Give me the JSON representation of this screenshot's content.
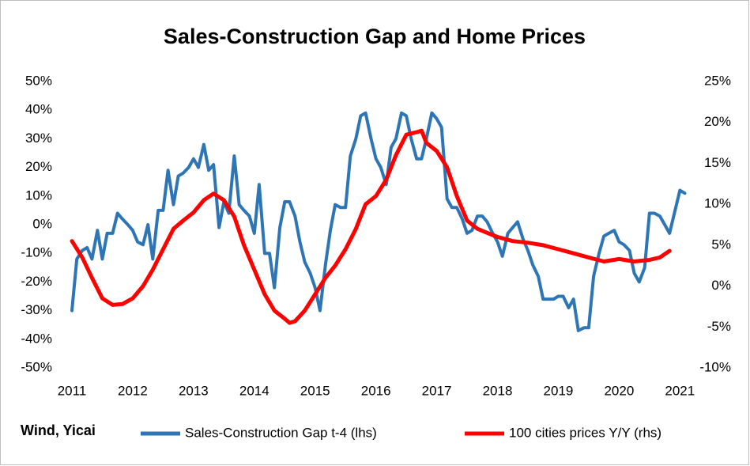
{
  "chart_data": {
    "type": "line",
    "title": "Sales-Construction Gap and Home Prices",
    "source": "Wind, Yicai",
    "xlim": [
      2011,
      2021.1
    ],
    "xticks": [
      2011,
      2012,
      2013,
      2014,
      2015,
      2016,
      2017,
      2018,
      2019,
      2020,
      2021
    ],
    "ylim": [
      -50,
      50
    ],
    "yticks": [
      {
        "value": -50,
        "label": "-50%"
      },
      {
        "value": -40,
        "label": "-40%"
      },
      {
        "value": -30,
        "label": "-30%"
      },
      {
        "value": -20,
        "label": "-20%"
      },
      {
        "value": -10,
        "label": "-10%"
      },
      {
        "value": 0,
        "label": "0%"
      },
      {
        "value": 10,
        "label": "10%"
      },
      {
        "value": 20,
        "label": "20%"
      },
      {
        "value": 30,
        "label": "30%"
      },
      {
        "value": 40,
        "label": "40%"
      },
      {
        "value": 50,
        "label": "50%"
      }
    ],
    "y2lim": [
      -10,
      25
    ],
    "y2ticks": [
      {
        "value": -10,
        "label": "-10%"
      },
      {
        "value": -5,
        "label": "-5%"
      },
      {
        "value": 0,
        "label": "0%"
      },
      {
        "value": 5,
        "label": "5%"
      },
      {
        "value": 10,
        "label": "10%"
      },
      {
        "value": 15,
        "label": "15%"
      },
      {
        "value": 20,
        "label": "20%"
      },
      {
        "value": 25,
        "label": "25%"
      }
    ],
    "grid": false,
    "legend": "bottom",
    "series": [
      {
        "name": "Sales-Construction Gap t-4 (lhs)",
        "color": "#2e75b6",
        "axis": "y",
        "x": [
          2011.0,
          2011.08,
          2011.17,
          2011.25,
          2011.33,
          2011.42,
          2011.5,
          2011.58,
          2011.67,
          2011.75,
          2011.83,
          2011.92,
          2012.0,
          2012.08,
          2012.17,
          2012.25,
          2012.33,
          2012.42,
          2012.5,
          2012.58,
          2012.67,
          2012.75,
          2012.83,
          2012.92,
          2013.0,
          2013.08,
          2013.17,
          2013.25,
          2013.33,
          2013.42,
          2013.5,
          2013.58,
          2013.67,
          2013.75,
          2013.83,
          2013.92,
          2014.0,
          2014.08,
          2014.17,
          2014.25,
          2014.33,
          2014.42,
          2014.5,
          2014.58,
          2014.67,
          2014.75,
          2014.83,
          2014.92,
          2015.0,
          2015.08,
          2015.17,
          2015.25,
          2015.33,
          2015.42,
          2015.5,
          2015.58,
          2015.67,
          2015.75,
          2015.83,
          2015.92,
          2016.0,
          2016.08,
          2016.17,
          2016.25,
          2016.33,
          2016.42,
          2016.5,
          2016.58,
          2016.67,
          2016.75,
          2016.83,
          2016.92,
          2017.0,
          2017.08,
          2017.17,
          2017.25,
          2017.33,
          2017.42,
          2017.5,
          2017.58,
          2017.67,
          2017.75,
          2017.83,
          2017.92,
          2018.0,
          2018.08,
          2018.17,
          2018.25,
          2018.33,
          2018.42,
          2018.5,
          2018.58,
          2018.67,
          2018.75,
          2018.83,
          2018.92,
          2019.0,
          2019.08,
          2019.17,
          2019.25,
          2019.33,
          2019.42,
          2019.5,
          2019.58,
          2019.67,
          2019.75,
          2019.83,
          2019.92,
          2020.0,
          2020.08,
          2020.17,
          2020.25,
          2020.33,
          2020.42,
          2020.5,
          2020.58,
          2020.67,
          2020.75,
          2020.83,
          2020.92,
          2021.0,
          2021.08
        ],
        "values": [
          -30,
          -12,
          -9,
          -8,
          -12,
          -2,
          -12,
          -3,
          -3,
          4,
          2,
          0,
          -2,
          -6,
          -7,
          0,
          -12,
          5,
          5,
          19,
          7,
          17,
          18,
          20,
          23,
          20,
          28,
          19,
          21,
          -1,
          8,
          4,
          24,
          7,
          5,
          3,
          -3,
          14,
          -10,
          -10,
          -22,
          -1,
          8,
          8,
          3,
          -6,
          -13,
          -17,
          -22,
          -30,
          -14,
          -2,
          7,
          6,
          6,
          24,
          30,
          38,
          39,
          30,
          23,
          20,
          14,
          27,
          30,
          39,
          38,
          30,
          23,
          23,
          30,
          39,
          37,
          34,
          9,
          6,
          6,
          2,
          -3,
          -2,
          3,
          3,
          1,
          -3,
          -6,
          -11,
          -3,
          -1,
          1,
          -5,
          -9,
          -14,
          -18,
          -26,
          -26,
          -26,
          -25,
          -25,
          -29,
          -26,
          -37,
          -36,
          -36,
          -18,
          -10,
          -4,
          -3,
          -2,
          -6,
          -7,
          -9,
          -17,
          -20,
          -15,
          4,
          4,
          3,
          0,
          -3,
          5,
          12,
          11
        ]
      },
      {
        "name": "100 cities prices Y/Y (rhs)",
        "color": "#ff0000",
        "axis": "y2",
        "x": [
          2011.0,
          2011.17,
          2011.33,
          2011.5,
          2011.67,
          2011.83,
          2012.0,
          2012.17,
          2012.33,
          2012.5,
          2012.67,
          2012.83,
          2013.0,
          2013.17,
          2013.33,
          2013.5,
          2013.67,
          2013.83,
          2014.0,
          2014.17,
          2014.33,
          2014.5,
          2014.58,
          2014.67,
          2014.83,
          2015.0,
          2015.17,
          2015.33,
          2015.5,
          2015.67,
          2015.83,
          2016.0,
          2016.17,
          2016.33,
          2016.5,
          2016.67,
          2016.75,
          2016.83,
          2017.0,
          2017.17,
          2017.33,
          2017.5,
          2017.67,
          2017.83,
          2018.0,
          2018.25,
          2018.5,
          2018.75,
          2019.0,
          2019.25,
          2019.5,
          2019.75,
          2020.0,
          2020.25,
          2020.5,
          2020.67,
          2020.83
        ],
        "values": [
          5.5,
          3.5,
          1,
          -1.5,
          -2.3,
          -2.2,
          -1.5,
          0,
          2,
          4.5,
          7,
          8,
          9,
          10.5,
          11.3,
          10.5,
          8.5,
          5,
          2,
          -1,
          -3,
          -4,
          -4.5,
          -4.3,
          -3,
          -1,
          1,
          2.5,
          4.5,
          7,
          10,
          11,
          13,
          16,
          18.5,
          18.8,
          19,
          17.5,
          16.5,
          14.5,
          11,
          8,
          7,
          6.5,
          6,
          5.5,
          5.3,
          5,
          4.5,
          4,
          3.5,
          3,
          3.3,
          3,
          3.2,
          3.5,
          4.3
        ]
      }
    ]
  }
}
